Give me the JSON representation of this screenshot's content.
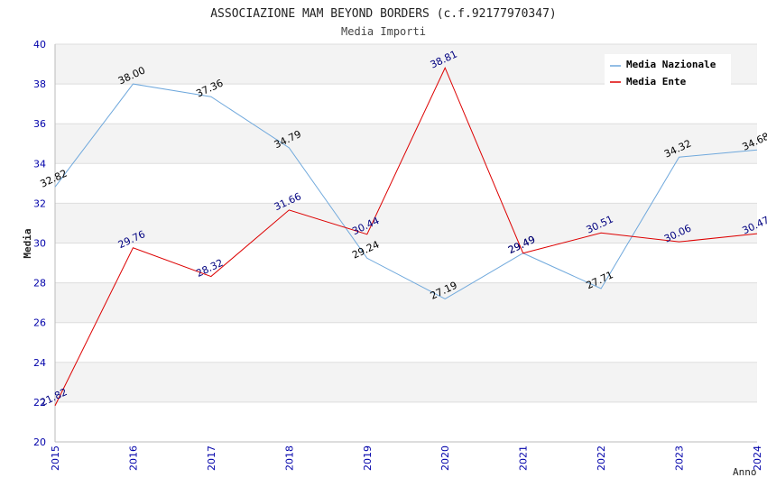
{
  "chart_data": {
    "type": "line",
    "title": "ASSOCIAZIONE MAM BEYOND BORDERS (c.f.92177970347)",
    "subtitle": "Media Importi",
    "xlabel": "Anno",
    "ylabel": "Media",
    "x": [
      2015,
      2016,
      2017,
      2018,
      2019,
      2020,
      2021,
      2022,
      2023,
      2024
    ],
    "ylim": [
      20,
      40
    ],
    "yticks": [
      20,
      22,
      24,
      26,
      28,
      30,
      32,
      34,
      36,
      38,
      40
    ],
    "grid": true,
    "legend_position": "top-right",
    "series": [
      {
        "name": "Media Nazionale",
        "color": "#6fa8dc",
        "label_color": "#000000",
        "values": [
          32.82,
          38.0,
          37.36,
          34.79,
          29.24,
          27.19,
          29.49,
          27.71,
          34.32,
          34.68
        ],
        "labels": [
          "32.82",
          "38.00",
          "37.36",
          "34.79",
          "29.24",
          "27.19",
          "29.49",
          "27.71",
          "34.32",
          "34.68"
        ]
      },
      {
        "name": "Media Ente",
        "color": "#dd0000",
        "label_color": "#000080",
        "values": [
          21.82,
          29.76,
          28.32,
          31.66,
          30.44,
          38.81,
          29.49,
          30.51,
          30.06,
          30.47
        ],
        "labels": [
          "21.82",
          "29.76",
          "28.32",
          "31.66",
          "30.44",
          "38.81",
          "29.49",
          "30.51",
          "30.06",
          "30.47"
        ]
      }
    ]
  }
}
